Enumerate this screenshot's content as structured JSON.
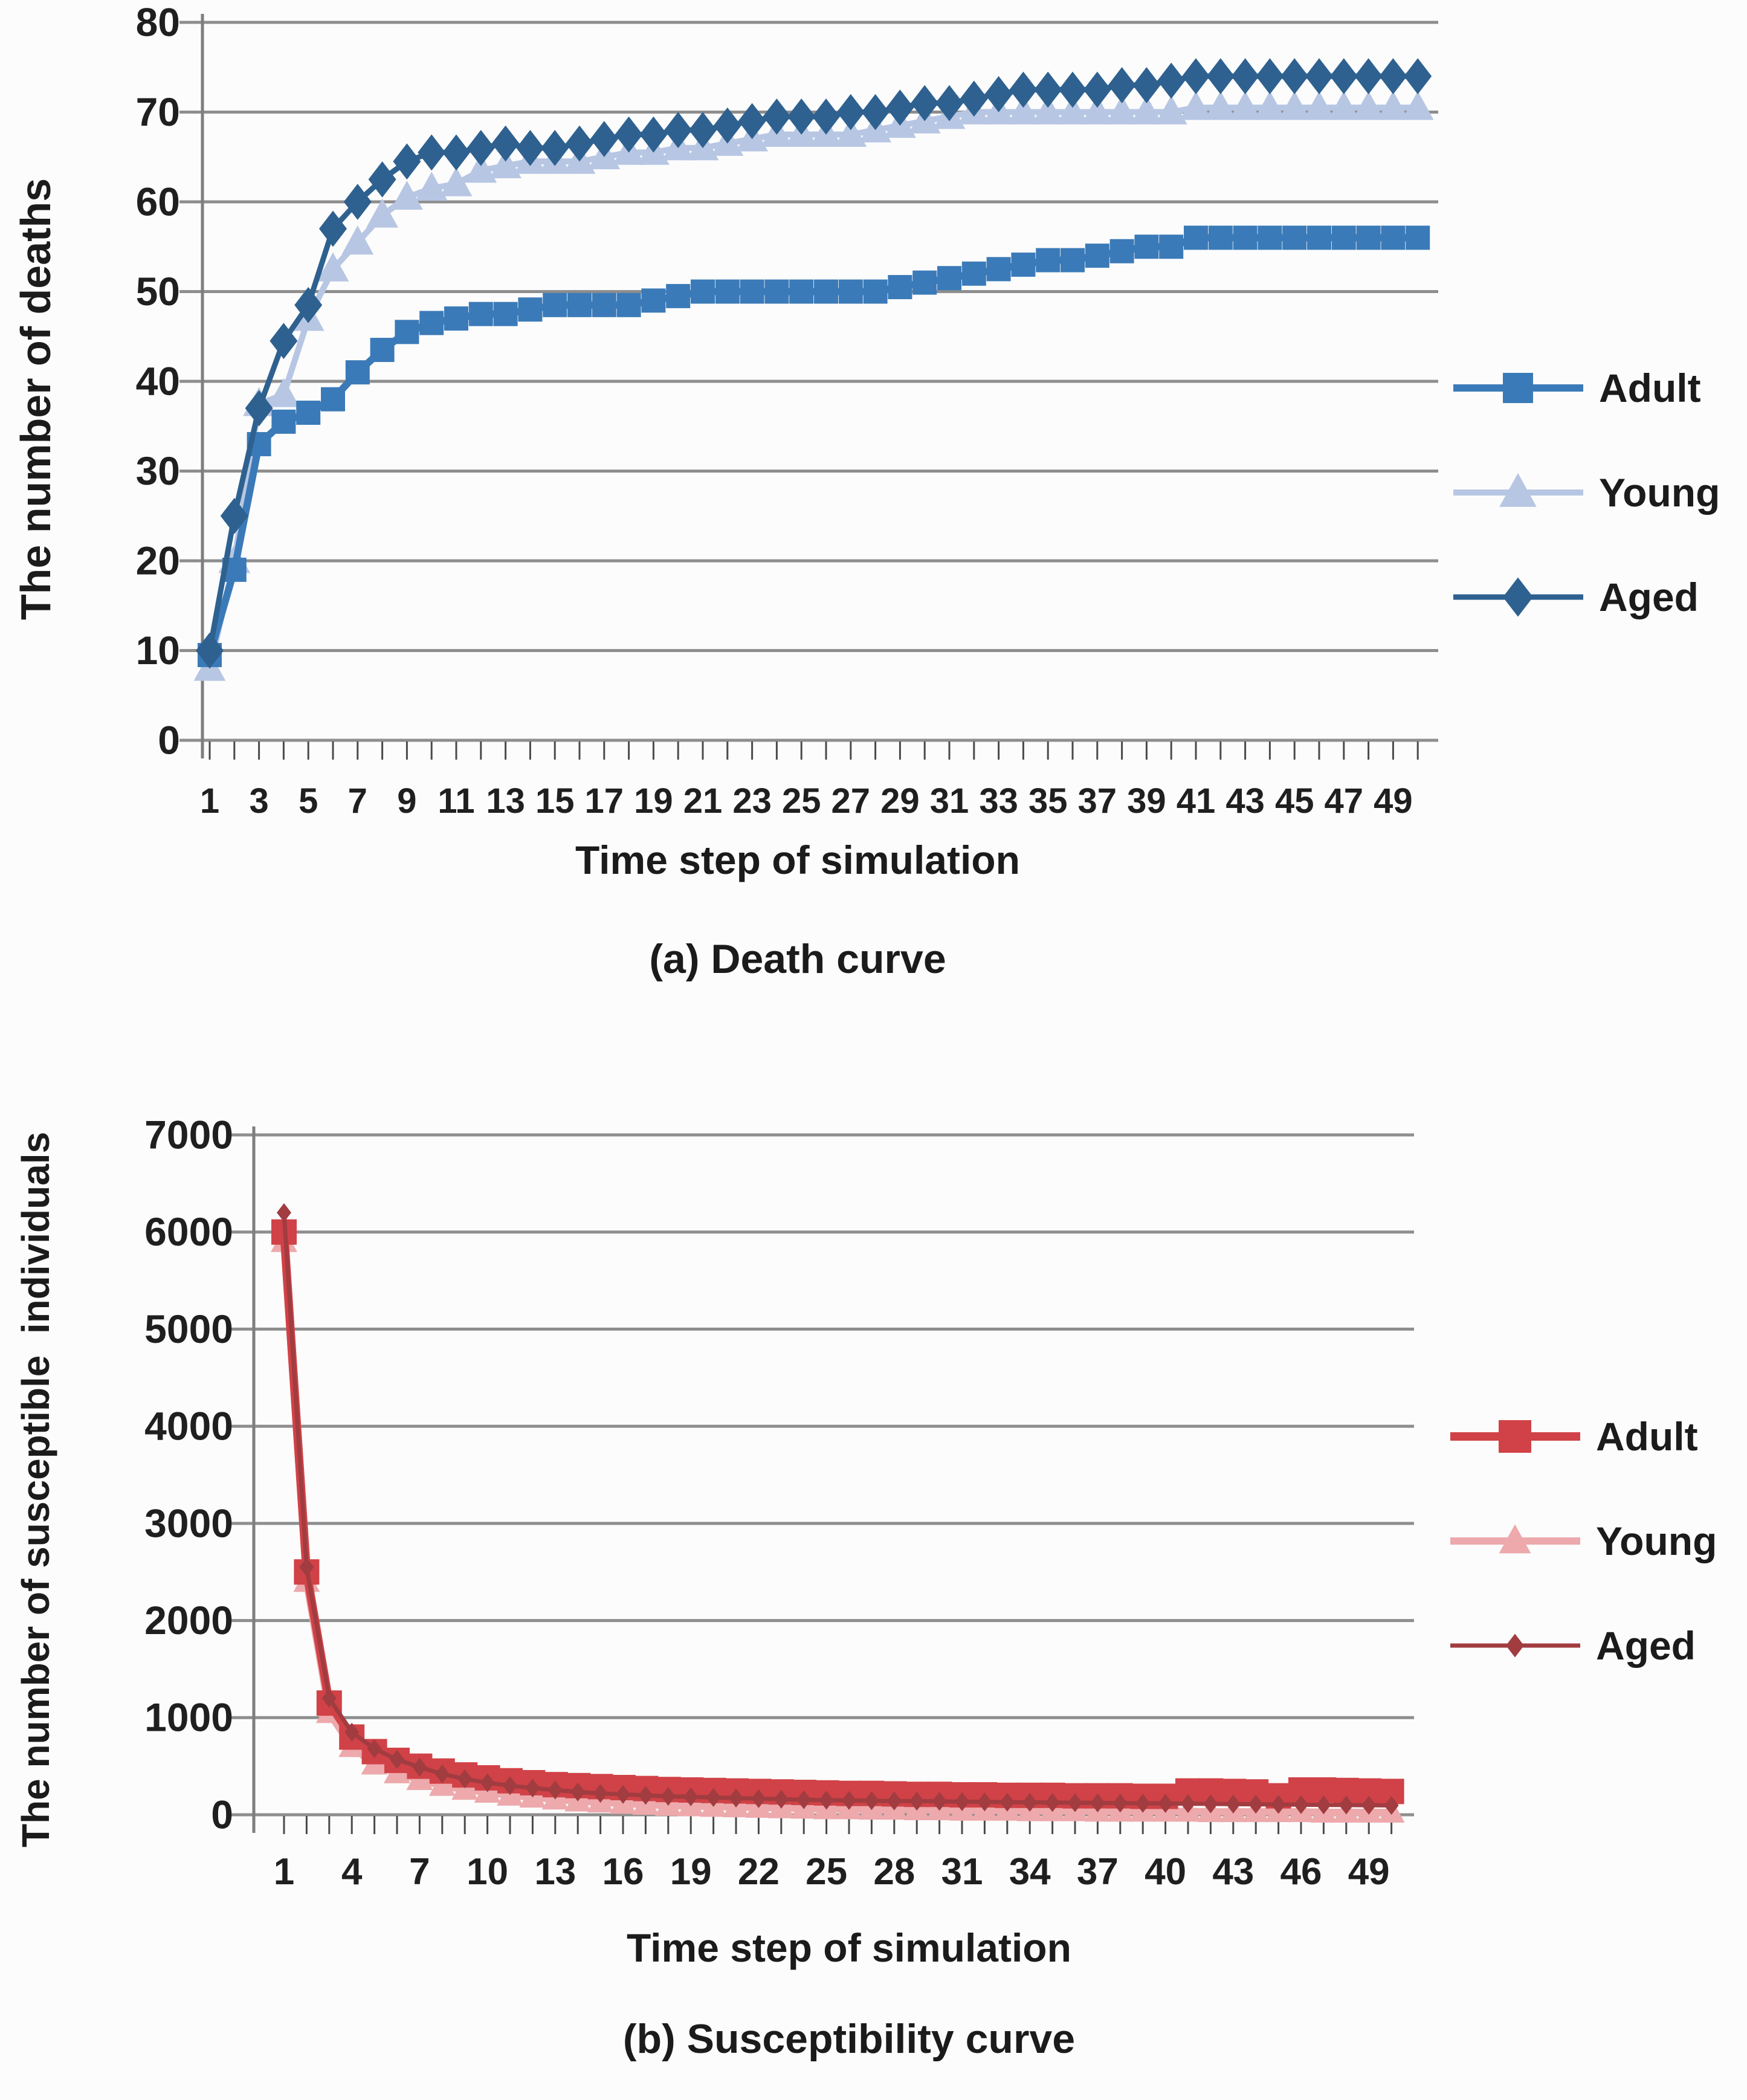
{
  "figure": {
    "background": "#fcfcfc",
    "gridline_color": "#8e8e8e",
    "axis_color": "#7e7e7e",
    "text_color": "#1b1b1b"
  },
  "chart_data": [
    {
      "id": "death-curve",
      "type": "line",
      "caption": "(a) Death curve",
      "xlabel": "Time step of simulation",
      "ylabel": "The number of deaths",
      "ylim": [
        0,
        80
      ],
      "yticks": [
        0,
        10,
        20,
        30,
        40,
        50,
        60,
        70,
        80
      ],
      "x_start": 1,
      "n_steps": 50,
      "x_tick_labels": [
        1,
        3,
        5,
        7,
        9,
        11,
        13,
        15,
        17,
        19,
        21,
        23,
        25,
        27,
        29,
        31,
        33,
        35,
        37,
        39,
        41,
        43,
        45,
        47,
        49
      ],
      "legend_position": "right",
      "grid": true,
      "series": [
        {
          "name": "Adult",
          "marker": "square",
          "color": "#3b7ab8",
          "values": [
            9.5,
            19,
            33,
            35.5,
            36.5,
            38,
            41,
            43.5,
            45.5,
            46.5,
            47,
            47.5,
            47.5,
            48,
            48.5,
            48.5,
            48.5,
            48.5,
            49,
            49.5,
            50,
            50,
            50,
            50,
            50,
            50,
            50,
            50,
            50.5,
            51,
            51.5,
            52,
            52.5,
            53,
            53.5,
            53.5,
            54,
            54.5,
            55,
            55,
            56,
            56,
            56,
            56,
            56,
            56,
            56,
            56,
            56,
            56
          ]
        },
        {
          "name": "Young",
          "marker": "triangle",
          "color": "#b7c6e3",
          "values": [
            8,
            20,
            37.5,
            38.5,
            47,
            52.5,
            55.5,
            58.5,
            60.5,
            61.5,
            62,
            63.5,
            64,
            64.5,
            64.5,
            64.5,
            65,
            65.5,
            65.5,
            66,
            66,
            66.5,
            67,
            67.5,
            67.5,
            67.5,
            67.5,
            68,
            68.5,
            69,
            69.5,
            70,
            70,
            70,
            70,
            70,
            70,
            70,
            70,
            70,
            70.5,
            70.5,
            70.5,
            70.5,
            70.5,
            70.5,
            70.5,
            70.5,
            70.5,
            70.5
          ]
        },
        {
          "name": "Aged",
          "marker": "diamond",
          "color": "#2e618f",
          "values": [
            10,
            25,
            37,
            44.5,
            48.5,
            57,
            60,
            62.5,
            64.5,
            65.5,
            65.5,
            66,
            66.5,
            66,
            66,
            66.5,
            67,
            67.5,
            67.5,
            68,
            68,
            68.5,
            69,
            69.5,
            69.5,
            69.5,
            70,
            70,
            70.5,
            71,
            71,
            71.5,
            72,
            72.5,
            72.5,
            72.5,
            72.5,
            73,
            73,
            73.5,
            74,
            74,
            74,
            74,
            74,
            74,
            74,
            74,
            74,
            74
          ]
        }
      ]
    },
    {
      "id": "susceptibility-curve",
      "type": "line",
      "caption": "(b) Susceptibility curve",
      "xlabel": "Time step of simulation",
      "ylabel": "The number of susceptible  individuals",
      "ylim": [
        0,
        7000
      ],
      "yticks": [
        0,
        1000,
        2000,
        3000,
        4000,
        5000,
        6000,
        7000
      ],
      "x_start": 1,
      "n_steps": 50,
      "x_tick_labels": [
        1,
        4,
        7,
        10,
        13,
        16,
        19,
        22,
        25,
        28,
        31,
        34,
        37,
        40,
        43,
        46,
        49
      ],
      "legend_position": "right",
      "grid": true,
      "series": [
        {
          "name": "Adult",
          "marker": "square",
          "color": "#d04247",
          "values": [
            6000,
            2500,
            1150,
            800,
            650,
            560,
            500,
            450,
            410,
            380,
            350,
            330,
            310,
            300,
            290,
            280,
            270,
            260,
            255,
            250,
            245,
            240,
            235,
            230,
            225,
            220,
            220,
            215,
            210,
            210,
            205,
            205,
            200,
            200,
            200,
            195,
            195,
            195,
            190,
            190,
            245,
            245,
            240,
            235,
            195,
            255,
            255,
            250,
            245,
            240
          ]
        },
        {
          "name": "Young",
          "marker": "triangle",
          "color": "#eda9ac",
          "values": [
            5900,
            2400,
            1050,
            700,
            520,
            430,
            360,
            300,
            260,
            230,
            200,
            180,
            160,
            140,
            130,
            115,
            105,
            95,
            90,
            85,
            80,
            75,
            70,
            65,
            60,
            60,
            55,
            55,
            50,
            50,
            45,
            45,
            45,
            40,
            40,
            40,
            35,
            35,
            35,
            35,
            35,
            30,
            30,
            30,
            30,
            30,
            25,
            25,
            25,
            25
          ]
        },
        {
          "name": "Aged",
          "marker": "diamond",
          "color": "#a13c40",
          "values": [
            6200,
            2550,
            1200,
            850,
            680,
            570,
            490,
            420,
            370,
            330,
            300,
            275,
            255,
            235,
            220,
            210,
            200,
            190,
            185,
            178,
            172,
            166,
            160,
            155,
            150,
            148,
            145,
            142,
            140,
            138,
            135,
            132,
            130,
            128,
            126,
            124,
            122,
            120,
            118,
            116,
            114,
            112,
            110,
            108,
            106,
            104,
            102,
            100,
            98,
            96
          ]
        }
      ]
    }
  ]
}
